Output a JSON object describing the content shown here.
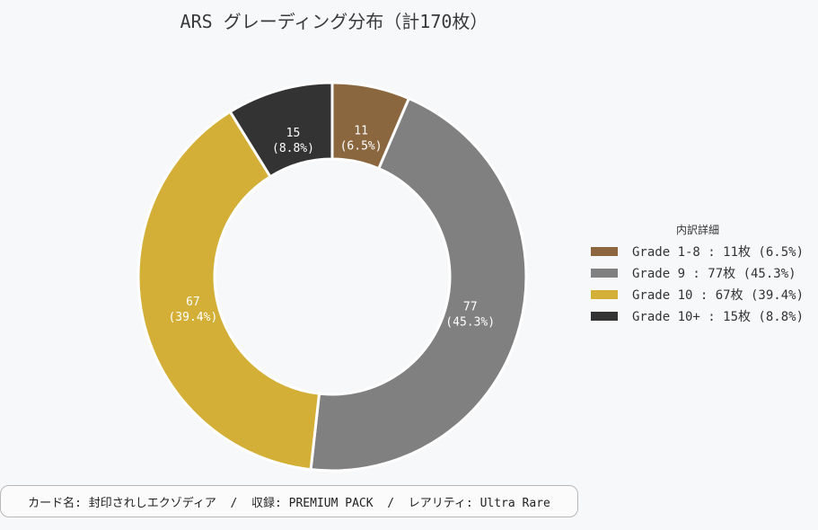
{
  "chart_data": {
    "type": "pie",
    "title": "ARS グレーディング分布（計170枚）",
    "total": 170,
    "donut": true,
    "slices": [
      {
        "label": "Grade 1-8",
        "value": 11,
        "percent": "6.5%",
        "color": "#8b6740",
        "text_color": "#ffffff"
      },
      {
        "label": "Grade 9",
        "value": 77,
        "percent": "45.3%",
        "color": "#808080",
        "text_color": "#ffffff"
      },
      {
        "label": "Grade 10",
        "value": 67,
        "percent": "39.4%",
        "color": "#d4af37",
        "text_color": "#ffffff"
      },
      {
        "label": "Grade 10+",
        "value": 15,
        "percent": "8.8%",
        "color": "#333333",
        "text_color": "#ffffff"
      }
    ],
    "legend": {
      "title": "内訳詳細",
      "placement": "right",
      "entries": [
        "Grade 1-8 : 11枚 (6.5%)",
        "Grade 9 : 77枚 (45.3%)",
        "Grade 10 : 67枚 (39.4%)",
        "Grade 10+ : 15枚 (8.8%)"
      ]
    }
  },
  "footer": {
    "text": "カード名: 封印されしエクゾディア  /  収録: PREMIUM PACK  /  レアリティ: Ultra Rare"
  },
  "colors": {
    "background": "#f7f8fa",
    "slice_border": "#ffffff"
  }
}
